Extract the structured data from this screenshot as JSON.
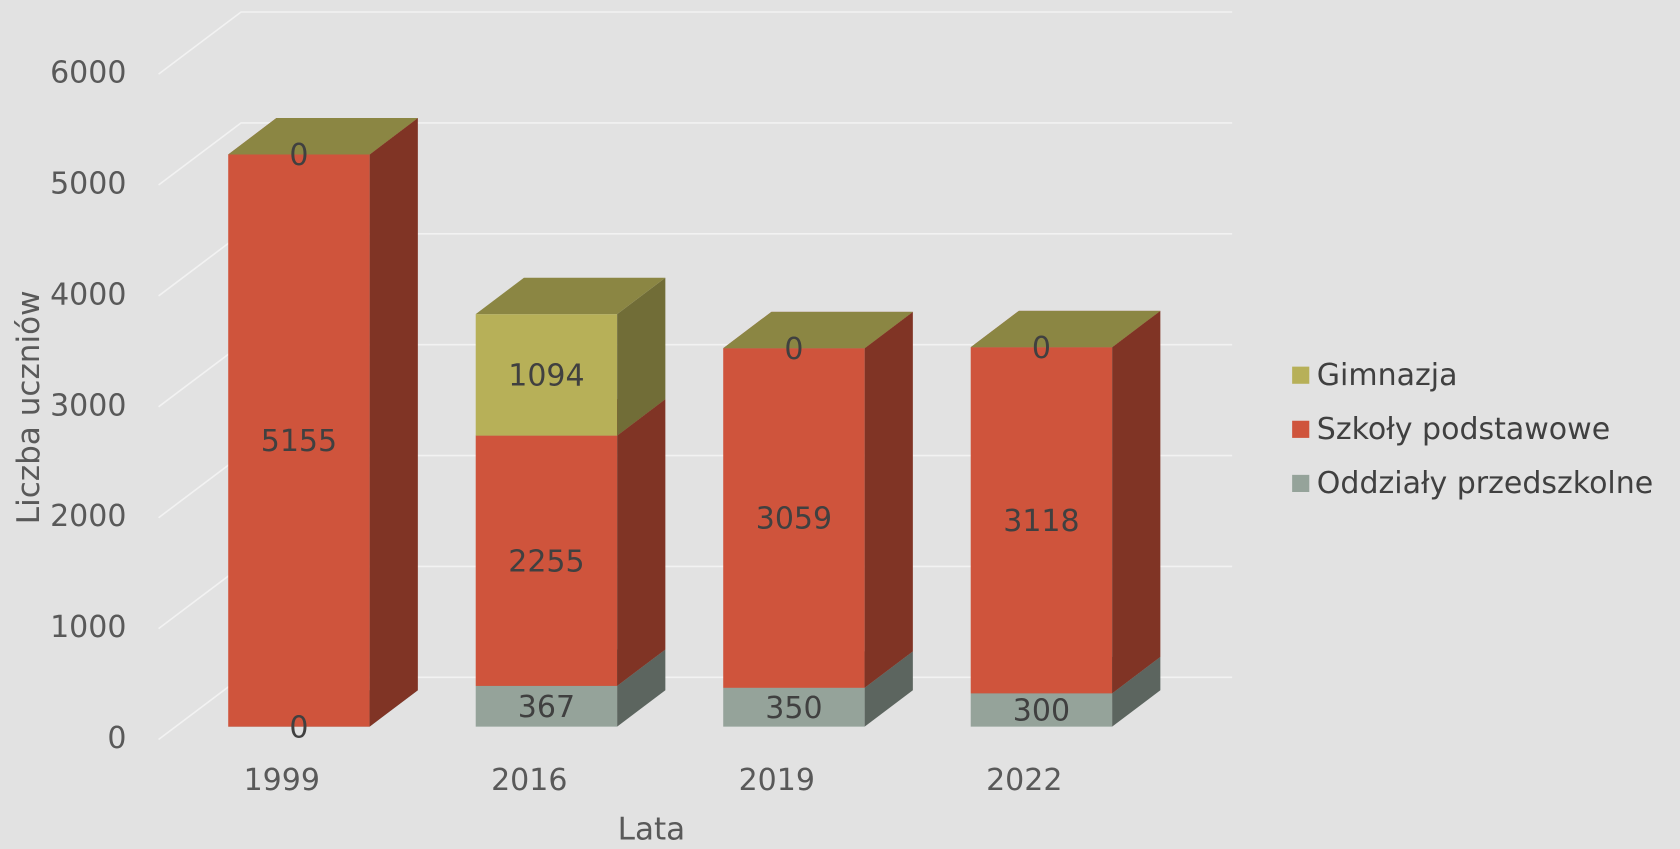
{
  "chart_data": {
    "type": "bar3d_stacked",
    "categories": [
      "1999",
      "2016",
      "2019",
      "2022"
    ],
    "series": [
      {
        "name": "Oddziały przedszkolne",
        "color": "#95a39a",
        "values": [
          0,
          367,
          350,
          300
        ]
      },
      {
        "name": "Szkoły podstawowe",
        "color": "#cf543c",
        "values": [
          5155,
          2255,
          3059,
          3118
        ]
      },
      {
        "name": "Gimnazja",
        "color": "#b7b058",
        "values": [
          0,
          1094,
          0,
          0
        ]
      }
    ],
    "ylim": [
      0,
      6000
    ],
    "yticks": [
      0,
      1000,
      2000,
      3000,
      4000,
      5000,
      6000
    ],
    "ylabel": "Liczba uczniów",
    "xlabel": "Lata",
    "grid": true,
    "legend": "right"
  }
}
